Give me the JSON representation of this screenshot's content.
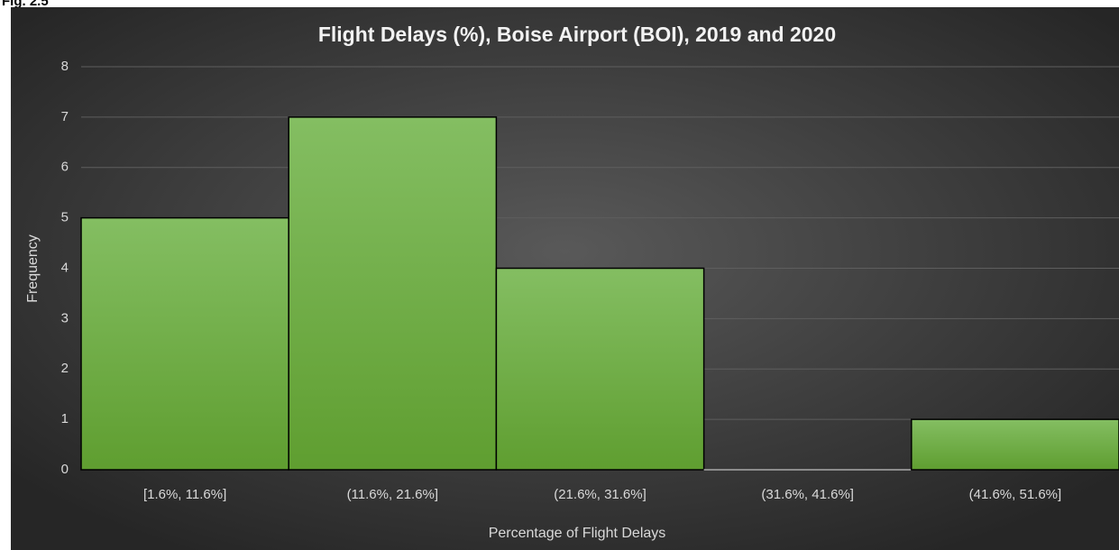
{
  "fig_label": "Fig. 2.5",
  "chart_data": {
    "type": "bar",
    "title": "Flight Delays (%), Boise Airport (BOI), 2019 and 2020",
    "x_label": "Percentage of Flight Delays",
    "y_label": "Frequency",
    "categories": [
      "[1.6%, 11.6%]",
      "(11.6%, 21.6%]",
      "(21.6%, 31.6%]",
      "(31.6%, 41.6%]",
      "(41.6%, 51.6%]"
    ],
    "values": [
      5,
      7,
      4,
      0,
      1
    ],
    "color": "#6aaa3f",
    "ylim": [
      0,
      8
    ],
    "yticks": [
      0,
      1,
      2,
      3,
      4,
      5,
      6,
      7,
      8
    ],
    "grid": true
  }
}
